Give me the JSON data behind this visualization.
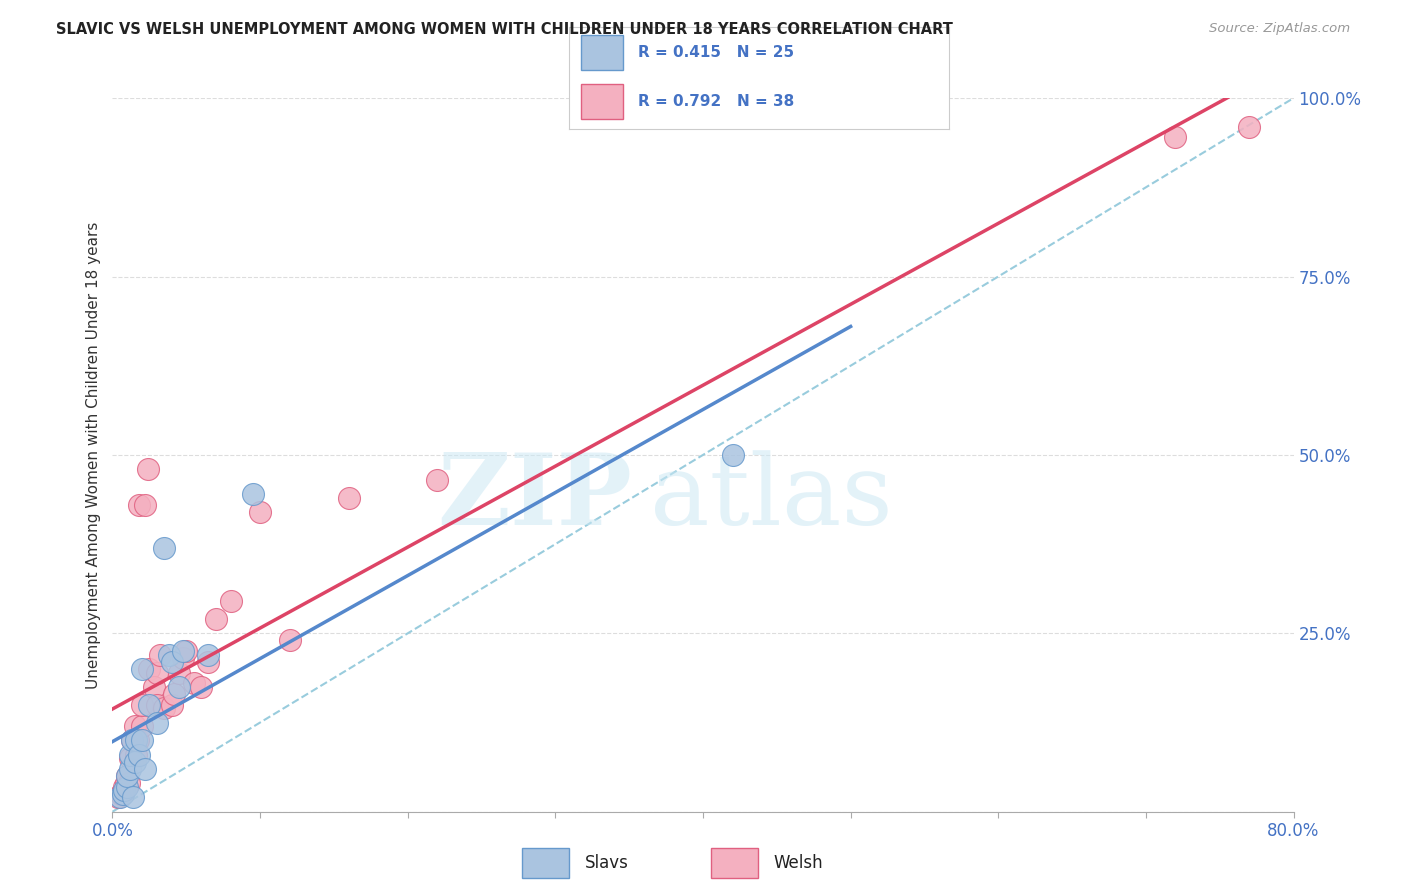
{
  "title": "SLAVIC VS WELSH UNEMPLOYMENT AMONG WOMEN WITH CHILDREN UNDER 18 YEARS CORRELATION CHART",
  "source": "Source: ZipAtlas.com",
  "ylabel": "Unemployment Among Women with Children Under 18 years",
  "xlim": [
    0.0,
    0.8
  ],
  "ylim": [
    0.0,
    1.0
  ],
  "xtick_vals": [
    0.0,
    0.1,
    0.2,
    0.3,
    0.4,
    0.5,
    0.6,
    0.7,
    0.8
  ],
  "ytick_vals": [
    0.0,
    0.25,
    0.5,
    0.75,
    1.0
  ],
  "background_color": "#ffffff",
  "grid_color": "#dddddd",
  "slavs_fill": "#aac4e0",
  "slavs_edge": "#6699cc",
  "welsh_fill": "#f4b0c0",
  "welsh_edge": "#e06080",
  "slavs_line": "#5588cc",
  "welsh_line": "#dd4466",
  "ref_line": "#99ccdd",
  "tick_color": "#4472c4",
  "legend_R_slavs": "R = 0.415",
  "legend_N_slavs": "N = 25",
  "legend_R_welsh": "R = 0.792",
  "legend_N_welsh": "N = 38",
  "slavs_x": [
    0.005,
    0.007,
    0.008,
    0.01,
    0.01,
    0.012,
    0.012,
    0.013,
    0.014,
    0.015,
    0.016,
    0.018,
    0.02,
    0.02,
    0.022,
    0.025,
    0.03,
    0.035,
    0.038,
    0.04,
    0.045,
    0.048,
    0.065,
    0.095,
    0.42
  ],
  "slavs_y": [
    0.02,
    0.025,
    0.03,
    0.035,
    0.05,
    0.06,
    0.08,
    0.1,
    0.02,
    0.07,
    0.1,
    0.08,
    0.1,
    0.2,
    0.06,
    0.15,
    0.125,
    0.37,
    0.22,
    0.21,
    0.175,
    0.225,
    0.22,
    0.445,
    0.5
  ],
  "welsh_x": [
    0.004,
    0.006,
    0.008,
    0.009,
    0.01,
    0.011,
    0.012,
    0.013,
    0.015,
    0.016,
    0.017,
    0.018,
    0.02,
    0.02,
    0.022,
    0.024,
    0.025,
    0.028,
    0.03,
    0.03,
    0.032,
    0.035,
    0.04,
    0.042,
    0.045,
    0.048,
    0.05,
    0.055,
    0.06,
    0.065,
    0.07,
    0.08,
    0.1,
    0.12,
    0.16,
    0.22,
    0.72,
    0.77
  ],
  "welsh_y": [
    0.02,
    0.025,
    0.035,
    0.04,
    0.05,
    0.04,
    0.075,
    0.1,
    0.12,
    0.08,
    0.1,
    0.43,
    0.12,
    0.15,
    0.43,
    0.48,
    0.2,
    0.175,
    0.15,
    0.195,
    0.22,
    0.145,
    0.15,
    0.165,
    0.195,
    0.215,
    0.225,
    0.18,
    0.175,
    0.21,
    0.27,
    0.295,
    0.42,
    0.24,
    0.44,
    0.465,
    0.945,
    0.96
  ]
}
